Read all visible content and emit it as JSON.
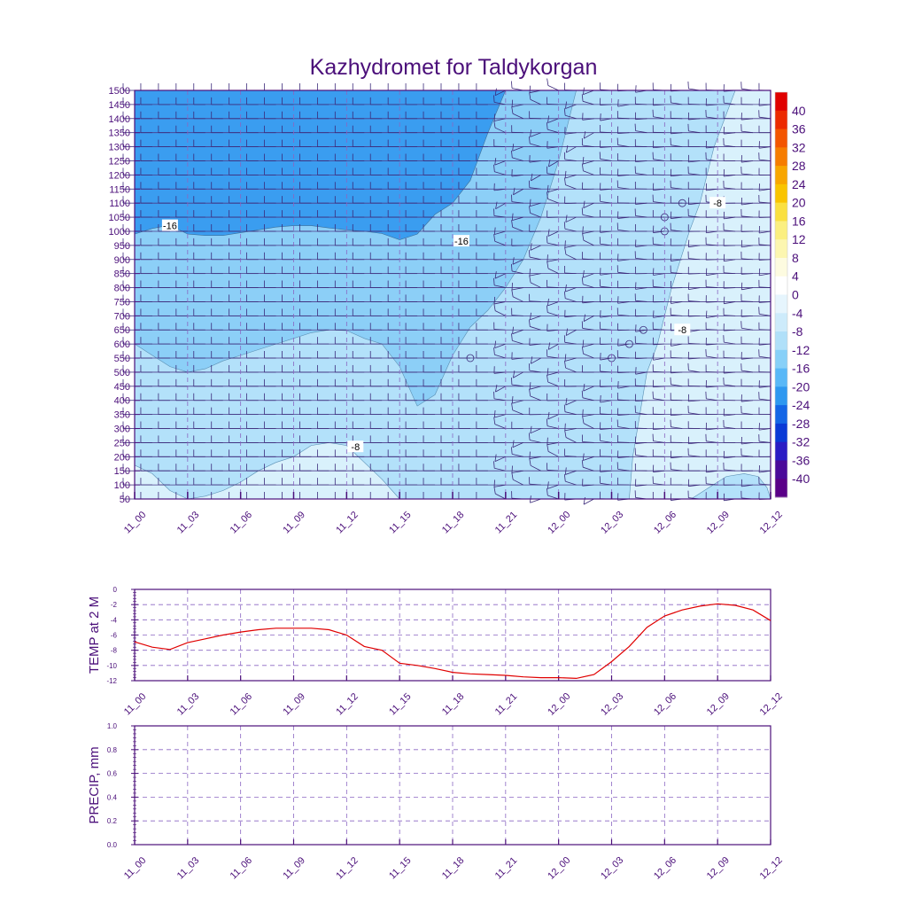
{
  "chart_data": [
    {
      "type": "heatmap",
      "title": "Kazhydromet for Taldykorgan",
      "x_ticks": [
        "11_00",
        "11_03",
        "11_06",
        "11_09",
        "11_12",
        "11_15",
        "11_18",
        "11_21",
        "12_00",
        "12_03",
        "12_06",
        "12_09",
        "12_12"
      ],
      "y_ticks": [
        1500,
        1450,
        1400,
        1350,
        1300,
        1250,
        1200,
        1150,
        1100,
        1050,
        1000,
        950,
        900,
        850,
        800,
        750,
        700,
        650,
        600,
        550,
        500,
        450,
        400,
        350,
        300,
        250,
        200,
        150,
        100,
        50
      ],
      "ylim": [
        50,
        1500
      ],
      "colorbar_labels": [
        40,
        36,
        32,
        28,
        24,
        20,
        16,
        12,
        8,
        4,
        0,
        -4,
        -8,
        -12,
        -16,
        -20,
        -24,
        -28,
        -32,
        -36,
        -40
      ],
      "colorbar_colors": [
        "#e00000",
        "#ec2a00",
        "#f35500",
        "#f67d00",
        "#f8a600",
        "#f9c400",
        "#fae040",
        "#fbef80",
        "#fcf6b0",
        "#fdfbe0",
        "#ffffff",
        "#e6f5fd",
        "#cdebfb",
        "#b0e0f9",
        "#87d0f8",
        "#59b8f7",
        "#2e98f0",
        "#1466e6",
        "#0a3ad6",
        "#2a1cc4",
        "#4a0a9a",
        "#5a0088"
      ],
      "band_colors": {
        "below_-20": "#3a9df0",
        "-20_to_-16": "#5db9f6",
        "-16_to_-12": "#8ccff7",
        "-12_to_-8": "#b3e1fa",
        "-8_to_-4": "#d9f1fc"
      },
      "contour_labels": [
        "-16",
        "-16",
        "-8",
        "-8",
        "-8"
      ],
      "hours": [
        0,
        1,
        2,
        3,
        4,
        5,
        6,
        7,
        8,
        9,
        10,
        11,
        12,
        13,
        14,
        15,
        16,
        17,
        18,
        19,
        20,
        21,
        22,
        23,
        24,
        25,
        26,
        27,
        28,
        29,
        30,
        31,
        32,
        33,
        34,
        35,
        36
      ],
      "contours": {
        "-20": [
          990,
          1010,
          1022,
          990,
          985,
          985,
          995,
          1005,
          1015,
          1020,
          1020,
          1012,
          1005,
          1000,
          992,
          970,
          990,
          1060,
          1100,
          1180,
          1350,
          1500
        ],
        "-16": [
          600,
          560,
          520,
          500,
          512,
          540,
          560,
          580,
          600,
          620,
          640,
          650,
          648,
          620,
          600,
          520,
          380,
          420,
          560,
          660,
          720,
          800,
          900,
          1050,
          1250,
          1500
        ],
        "-8_lower": [
          170,
          140,
          80,
          50,
          60,
          80,
          110,
          150,
          180,
          200,
          240,
          250,
          240,
          180,
          120,
          50
        ],
        "-8_upper": [
          50,
          200,
          350,
          500,
          600,
          700,
          800,
          900,
          1000,
          1100,
          1300,
          1500
        ],
        "-8_right": [
          50,
          90,
          130,
          140,
          130,
          90,
          50
        ]
      },
      "pressure_levels": [
        50,
        100,
        150,
        200,
        250,
        300,
        350,
        400,
        450,
        500,
        550,
        600,
        650,
        700,
        750,
        800,
        850,
        900,
        950,
        1000,
        1050,
        1100,
        1150,
        1200,
        1250,
        1300,
        1350,
        1400,
        1450,
        1500
      ]
    },
    {
      "type": "line",
      "title": "",
      "ylabel": "TEMP at 2 M",
      "xlabel": "",
      "x_ticks": [
        "11_00",
        "11_03",
        "11_06",
        "11_09",
        "11_12",
        "11_15",
        "11_18",
        "11_21",
        "12_00",
        "12_03",
        "12_06",
        "12_09",
        "12_12"
      ],
      "y_ticks": [
        "0",
        "-2",
        "-4",
        "-6",
        "-8",
        "-10",
        "-12"
      ],
      "ylim": [
        -12,
        0
      ],
      "hours": [
        0,
        1,
        2,
        3,
        4,
        5,
        6,
        7,
        8,
        9,
        10,
        11,
        12,
        13,
        14,
        15,
        16,
        17,
        18,
        19,
        20,
        21,
        22,
        23,
        24,
        25,
        26,
        27,
        28,
        29,
        30,
        31,
        32,
        33,
        34,
        35,
        36
      ],
      "values": [
        -6.9,
        -7.6,
        -7.9,
        -7.0,
        -6.5,
        -6.0,
        -5.6,
        -5.3,
        -5.1,
        -5.1,
        -5.1,
        -5.3,
        -6.0,
        -7.5,
        -8.0,
        -9.7,
        -10.0,
        -10.4,
        -10.9,
        -11.1,
        -11.2,
        -11.3,
        -11.5,
        -11.6,
        -11.6,
        -11.7,
        -11.2,
        -9.5,
        -7.5,
        -5.0,
        -3.5,
        -2.7,
        -2.2,
        -1.9,
        -2.1,
        -2.7,
        -4.1
      ],
      "line_color": "#e00000"
    },
    {
      "type": "line",
      "title": "",
      "ylabel": "PRECIP, mm",
      "xlabel": "",
      "x_ticks": [
        "11_00",
        "11_03",
        "11_06",
        "11_09",
        "11_12",
        "11_15",
        "11_18",
        "11_21",
        "12_00",
        "12_03",
        "12_06",
        "12_09",
        "12_12"
      ],
      "y_ticks": [
        "1.0",
        "0.8",
        "0.6",
        "0.4",
        "0.2",
        "0.0"
      ],
      "ylim": [
        0,
        1
      ],
      "values": []
    }
  ]
}
